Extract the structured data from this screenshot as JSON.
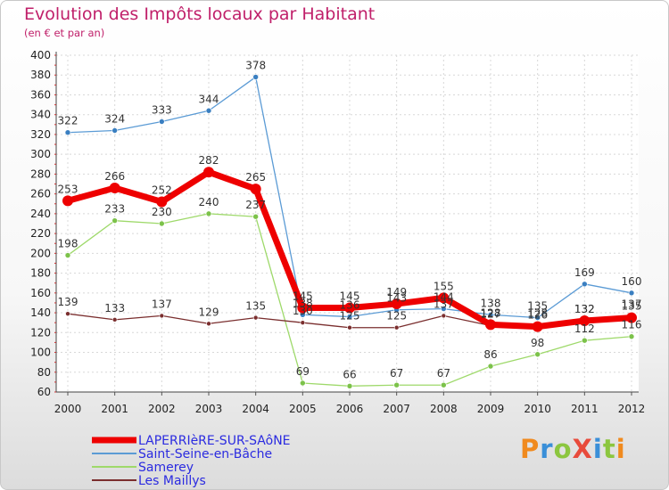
{
  "title": "Evolution des Impôts locaux par Habitant",
  "subtitle": "(en € et par an)",
  "logo": {
    "text": "ProXiti",
    "colors": [
      "#f08a1e",
      "#3a8fd8",
      "#8cc63f",
      "#e84b3c",
      "#3a8fd8",
      "#8cc63f",
      "#f08a1e"
    ]
  },
  "chart_data": {
    "type": "line",
    "title": "Evolution des Impôts locaux par Habitant",
    "subtitle": "(en € et par an)",
    "xlabel": "",
    "ylabel": "",
    "ylim": [
      60,
      400
    ],
    "y_ticks": [
      60,
      80,
      100,
      120,
      140,
      160,
      180,
      200,
      220,
      240,
      260,
      280,
      300,
      320,
      340,
      360,
      380,
      400
    ],
    "x": [
      "2000",
      "2001",
      "2002",
      "2003",
      "2004",
      "2005",
      "2006",
      "2007",
      "2008",
      "2009",
      "2010",
      "2011",
      "2012"
    ],
    "grid": true,
    "legend_position": "bottom-left",
    "series": [
      {
        "name": "Saint-Seine-en-Bâche",
        "color": "#5b9bd5",
        "marker": "#3a7fc1",
        "width": 1.3,
        "radius": 3,
        "values": [
          322,
          324,
          333,
          344,
          378,
          138,
          136,
          143,
          144,
          138,
          135,
          169,
          160
        ],
        "labels": [
          "322",
          "324",
          "333",
          "344",
          "378",
          "138",
          "136",
          "143",
          "144",
          "138",
          "135",
          "169",
          "160"
        ]
      },
      {
        "name": "Samerey",
        "color": "#9ed96a",
        "marker": "#7cc24a",
        "width": 1.3,
        "radius": 3,
        "values": [
          198,
          233,
          230,
          240,
          237,
          69,
          66,
          67,
          67,
          86,
          98,
          112,
          116
        ],
        "labels": [
          "198",
          "233",
          "230",
          "240",
          "237",
          "69",
          "66",
          "67",
          "67",
          "86",
          "98",
          "112",
          "116"
        ]
      },
      {
        "name": "Les Maillys",
        "color": "#7a2e2e",
        "marker": "#7a2e2e",
        "width": 1.3,
        "radius": 2.5,
        "values": [
          139,
          133,
          137,
          129,
          135,
          130,
          125,
          125,
          137,
          127,
          128,
          132,
          137
        ],
        "labels": [
          "139",
          "133",
          "137",
          "129",
          "135",
          "130",
          "125",
          "125",
          "137",
          "127",
          "128",
          "132",
          "137"
        ]
      },
      {
        "name": "LAPERRIèRE-SUR-SAôNE",
        "color": "#ee0000",
        "marker": "#ee0000",
        "width": 7,
        "radius": 6,
        "values": [
          253,
          266,
          252,
          282,
          265,
          145,
          145,
          149,
          155,
          128,
          126,
          132,
          135
        ],
        "labels": [
          "253",
          "266",
          "252",
          "282",
          "265",
          "145",
          "145",
          "149",
          "155",
          "128",
          "126",
          "132",
          "135"
        ]
      }
    ],
    "legend": [
      {
        "name": "LAPERRIèRE-SUR-SAôNE",
        "color": "#ee0000",
        "width": 7
      },
      {
        "name": "Saint-Seine-en-Bâche",
        "color": "#5b9bd5",
        "width": 2
      },
      {
        "name": "Samerey",
        "color": "#9ed96a",
        "width": 2
      },
      {
        "name": "Les Maillys",
        "color": "#7a2e2e",
        "width": 2
      }
    ]
  }
}
